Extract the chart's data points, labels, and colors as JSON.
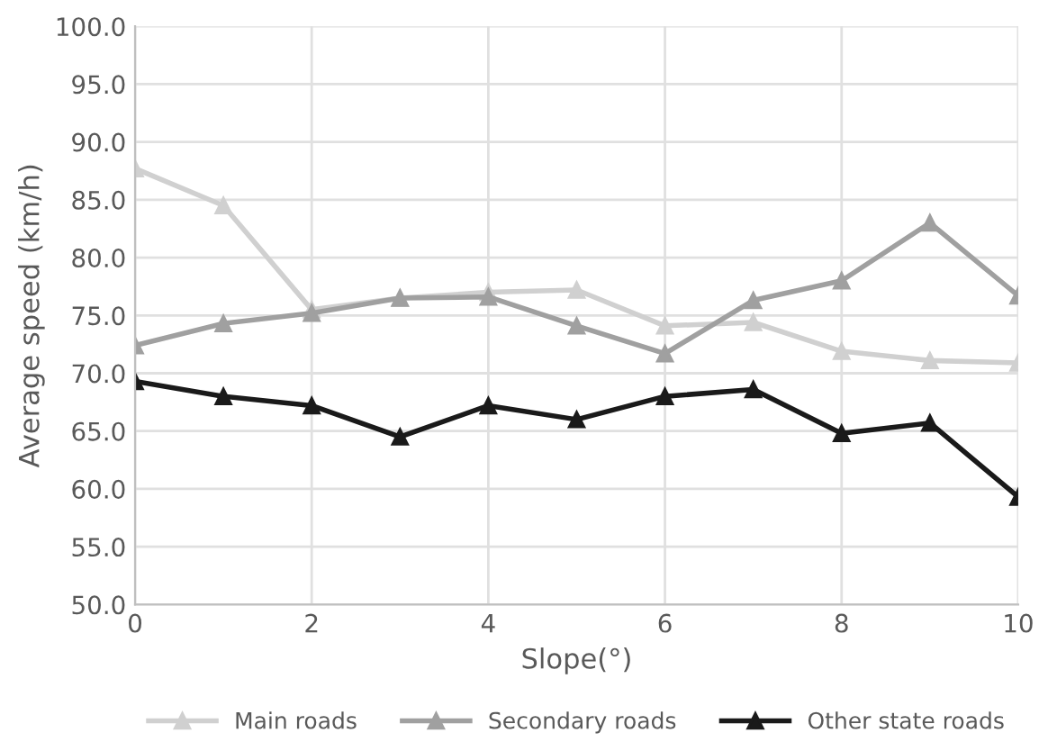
{
  "chart_data": {
    "type": "line",
    "xlabel": "Slope(°)",
    "ylabel": "Average speed (km/h)",
    "x": [
      0,
      1,
      2,
      3,
      4,
      5,
      6,
      7,
      8,
      9,
      10
    ],
    "series": [
      {
        "name": "Main roads",
        "color": "#d0d0d0",
        "values": [
          87.7,
          84.5,
          75.5,
          76.5,
          77.0,
          77.2,
          74.1,
          74.4,
          71.9,
          71.1,
          70.9
        ]
      },
      {
        "name": "Secondary roads",
        "color": "#a0a0a0",
        "values": [
          72.4,
          74.3,
          75.2,
          76.5,
          76.6,
          74.1,
          71.7,
          76.3,
          78.0,
          83.0,
          76.7
        ]
      },
      {
        "name": "Other state roads",
        "color": "#1a1a1a",
        "values": [
          69.3,
          68.0,
          67.2,
          64.5,
          67.2,
          66.0,
          68.0,
          68.6,
          64.8,
          65.7,
          59.3
        ]
      }
    ],
    "xlim": [
      0,
      10
    ],
    "xticks": [
      0,
      2,
      4,
      6,
      8,
      10
    ],
    "ylim": [
      50,
      100
    ],
    "yticks": [
      {
        "value": 50,
        "label": "50.0"
      },
      {
        "value": 55,
        "label": "55.0"
      },
      {
        "value": 60,
        "label": "60.0"
      },
      {
        "value": 65,
        "label": "65.0"
      },
      {
        "value": 70,
        "label": "70.0"
      },
      {
        "value": 75,
        "label": "75.0"
      },
      {
        "value": 80,
        "label": "80.0"
      },
      {
        "value": 85,
        "label": "85.0"
      },
      {
        "value": 90,
        "label": "90.0"
      },
      {
        "value": 95,
        "label": "95.0"
      },
      {
        "value": 100,
        "label": "100.0"
      }
    ],
    "grid": true,
    "legend": "bottom",
    "marker": "triangle",
    "line_style": "solid"
  }
}
